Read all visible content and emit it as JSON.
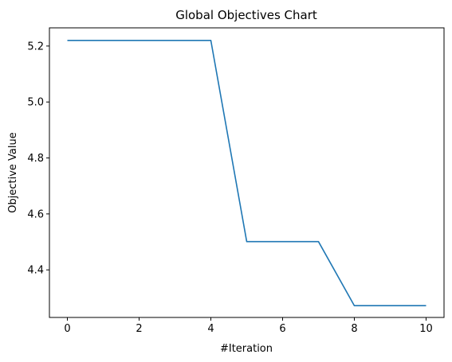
{
  "chart_data": {
    "type": "line",
    "title": "Global Objectives Chart",
    "xlabel": "#Iteration",
    "ylabel": "Objective Value",
    "xlim": [
      -0.5,
      10.5
    ],
    "ylim": [
      4.23,
      5.265
    ],
    "x_ticks": [
      0,
      2,
      4,
      6,
      8,
      10
    ],
    "x_tick_labels": [
      "0",
      "2",
      "4",
      "6",
      "8",
      "10"
    ],
    "y_ticks": [
      4.4,
      4.6,
      4.8,
      5.0,
      5.2
    ],
    "y_tick_labels": [
      "4.4",
      "4.6",
      "4.8",
      "5.0",
      "5.2"
    ],
    "grid": false,
    "line_color": "#1f77b4",
    "x": [
      0,
      1,
      2,
      3,
      4,
      5,
      6,
      7,
      8,
      9,
      10
    ],
    "y": [
      5.22,
      5.22,
      5.22,
      5.22,
      5.22,
      4.501,
      4.501,
      4.501,
      4.272,
      4.272,
      4.272
    ]
  }
}
